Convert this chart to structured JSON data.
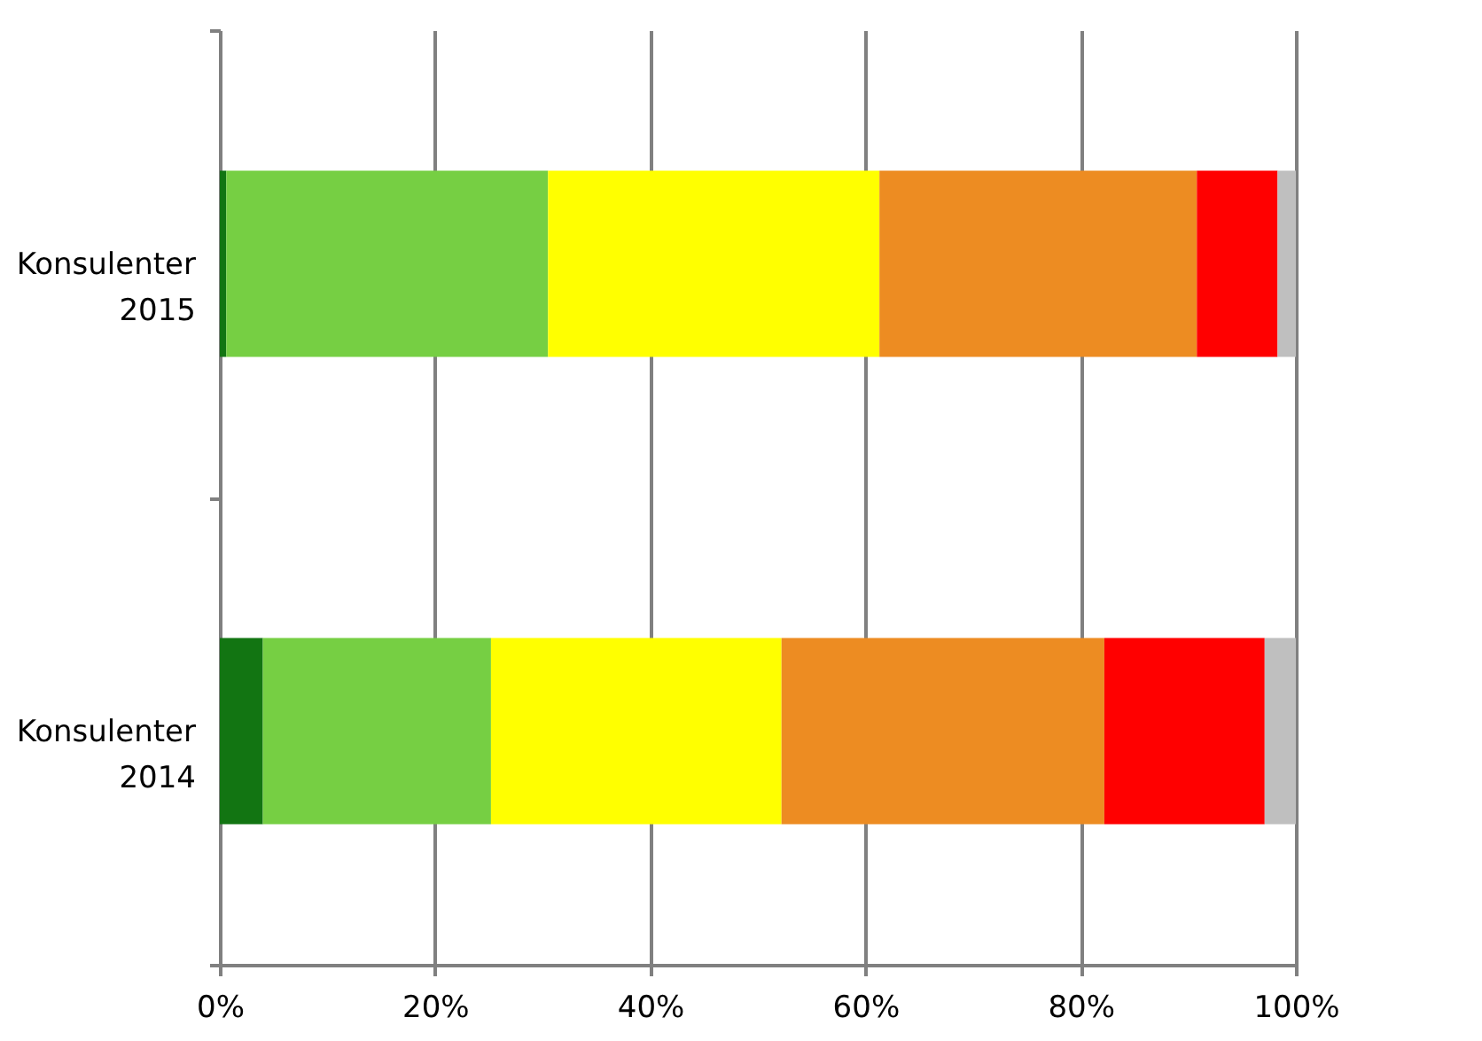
{
  "chart_data": {
    "type": "bar",
    "orientation": "horizontal",
    "stacked": true,
    "categories": [
      "Konsulenter 2015",
      "Konsulenter 2014"
    ],
    "series": [
      {
        "color": "#127512",
        "values": [
          0.6,
          4.0
        ]
      },
      {
        "color": "#76cf43",
        "values": [
          29.9,
          21.2
        ]
      },
      {
        "color": "#ffff00",
        "values": [
          30.8,
          27.0
        ]
      },
      {
        "color": "#ed8c22",
        "values": [
          29.5,
          30.0
        ]
      },
      {
        "color": "#ff0000",
        "values": [
          7.5,
          14.9
        ]
      },
      {
        "color": "#bfbfbf",
        "values": [
          1.7,
          2.9
        ]
      }
    ],
    "xlim": [
      0,
      100
    ],
    "xticks": [
      {
        "value": 0,
        "label": "0%"
      },
      {
        "value": 20,
        "label": "20%"
      },
      {
        "value": 40,
        "label": "40%"
      },
      {
        "value": 60,
        "label": "60%"
      },
      {
        "value": 80,
        "label": "80%"
      },
      {
        "value": 100,
        "label": "100%"
      }
    ],
    "grid": "x",
    "legend": false
  }
}
